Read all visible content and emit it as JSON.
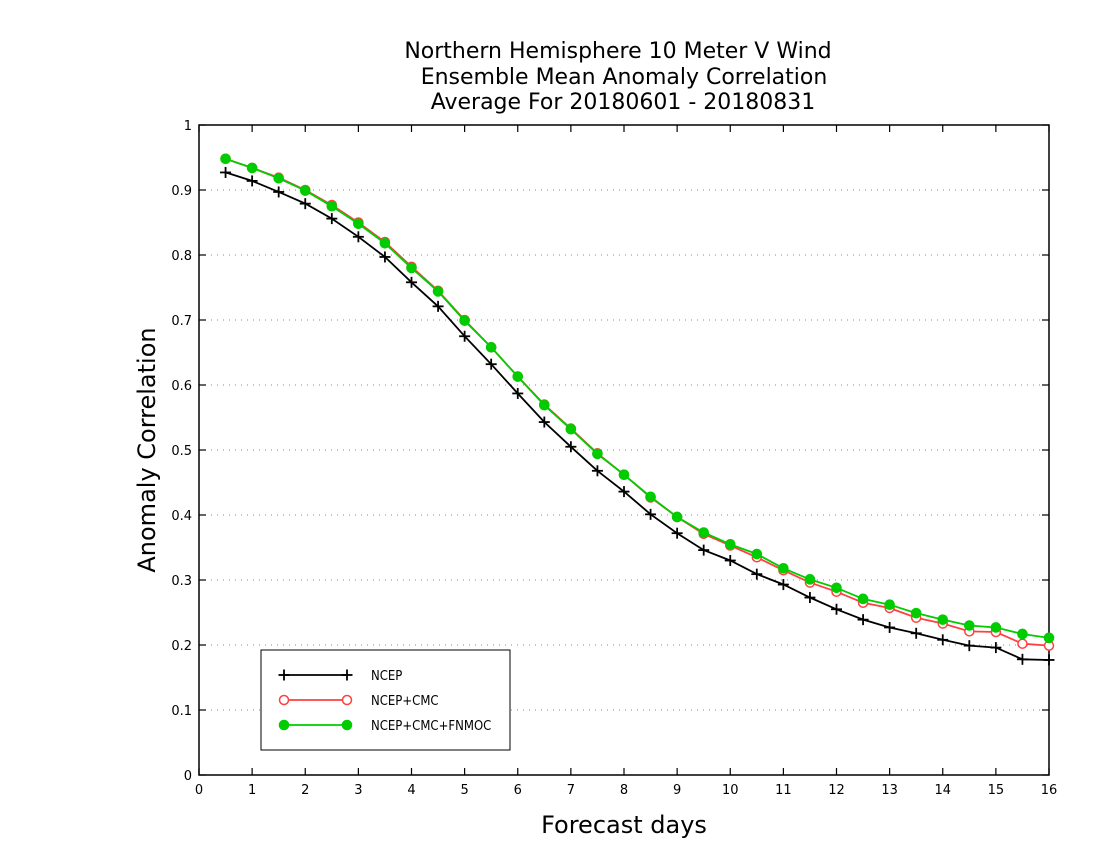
{
  "chart_data": {
    "type": "line",
    "title": [
      "Northern Hemisphere 10 Meter V Wind",
      "Ensemble Mean Anomaly Correlation",
      "Average For 20180601 - 20180831"
    ],
    "xlabel": "Forecast days",
    "ylabel": "Anomaly Correlation",
    "xlim": [
      0,
      16
    ],
    "ylim": [
      0,
      1
    ],
    "x_ticks": [
      "0",
      "1",
      "2",
      "3",
      "4",
      "5",
      "6",
      "7",
      "8",
      "9",
      "10",
      "11",
      "12",
      "13",
      "14",
      "15",
      "16"
    ],
    "y_ticks": [
      "0",
      "0.1",
      "0.2",
      "0.3",
      "0.4",
      "0.5",
      "0.6",
      "0.7",
      "0.8",
      "0.9",
      "1"
    ],
    "grid": "horizontal-dotted",
    "legend_position": "bottom-left",
    "x": [
      0.5,
      1,
      1.5,
      2,
      2.5,
      3,
      3.5,
      4,
      4.5,
      5,
      5.5,
      6,
      6.5,
      7,
      7.5,
      8,
      8.5,
      9,
      9.5,
      10,
      10.5,
      11,
      11.5,
      12,
      12.5,
      13,
      13.5,
      14,
      14.5,
      15,
      15.5,
      16
    ],
    "series": [
      {
        "name": "NCEP",
        "color": "#000000",
        "marker": "plus",
        "values": [
          0.927,
          0.914,
          0.897,
          0.879,
          0.856,
          0.828,
          0.797,
          0.758,
          0.721,
          0.675,
          0.632,
          0.587,
          0.543,
          0.505,
          0.468,
          0.436,
          0.401,
          0.372,
          0.346,
          0.33,
          0.309,
          0.293,
          0.273,
          0.255,
          0.239,
          0.227,
          0.218,
          0.208,
          0.199,
          0.196,
          0.178,
          0.177
        ]
      },
      {
        "name": "NCEP+CMC",
        "color": "#ff4040",
        "marker": "open-circle",
        "values": [
          0.948,
          0.934,
          0.919,
          0.9,
          0.877,
          0.85,
          0.82,
          0.782,
          0.745,
          0.7,
          0.658,
          0.613,
          0.57,
          0.533,
          0.495,
          0.462,
          0.427,
          0.397,
          0.371,
          0.353,
          0.335,
          0.315,
          0.296,
          0.282,
          0.265,
          0.257,
          0.242,
          0.233,
          0.221,
          0.22,
          0.202,
          0.199
        ]
      },
      {
        "name": "NCEP+CMC+FNMOC",
        "color": "#00cc00",
        "marker": "filled-circle",
        "values": [
          0.948,
          0.934,
          0.918,
          0.899,
          0.875,
          0.848,
          0.818,
          0.78,
          0.744,
          0.699,
          0.658,
          0.613,
          0.569,
          0.532,
          0.494,
          0.462,
          0.428,
          0.397,
          0.373,
          0.355,
          0.34,
          0.318,
          0.301,
          0.288,
          0.271,
          0.262,
          0.249,
          0.239,
          0.23,
          0.227,
          0.217,
          0.211
        ]
      }
    ]
  }
}
